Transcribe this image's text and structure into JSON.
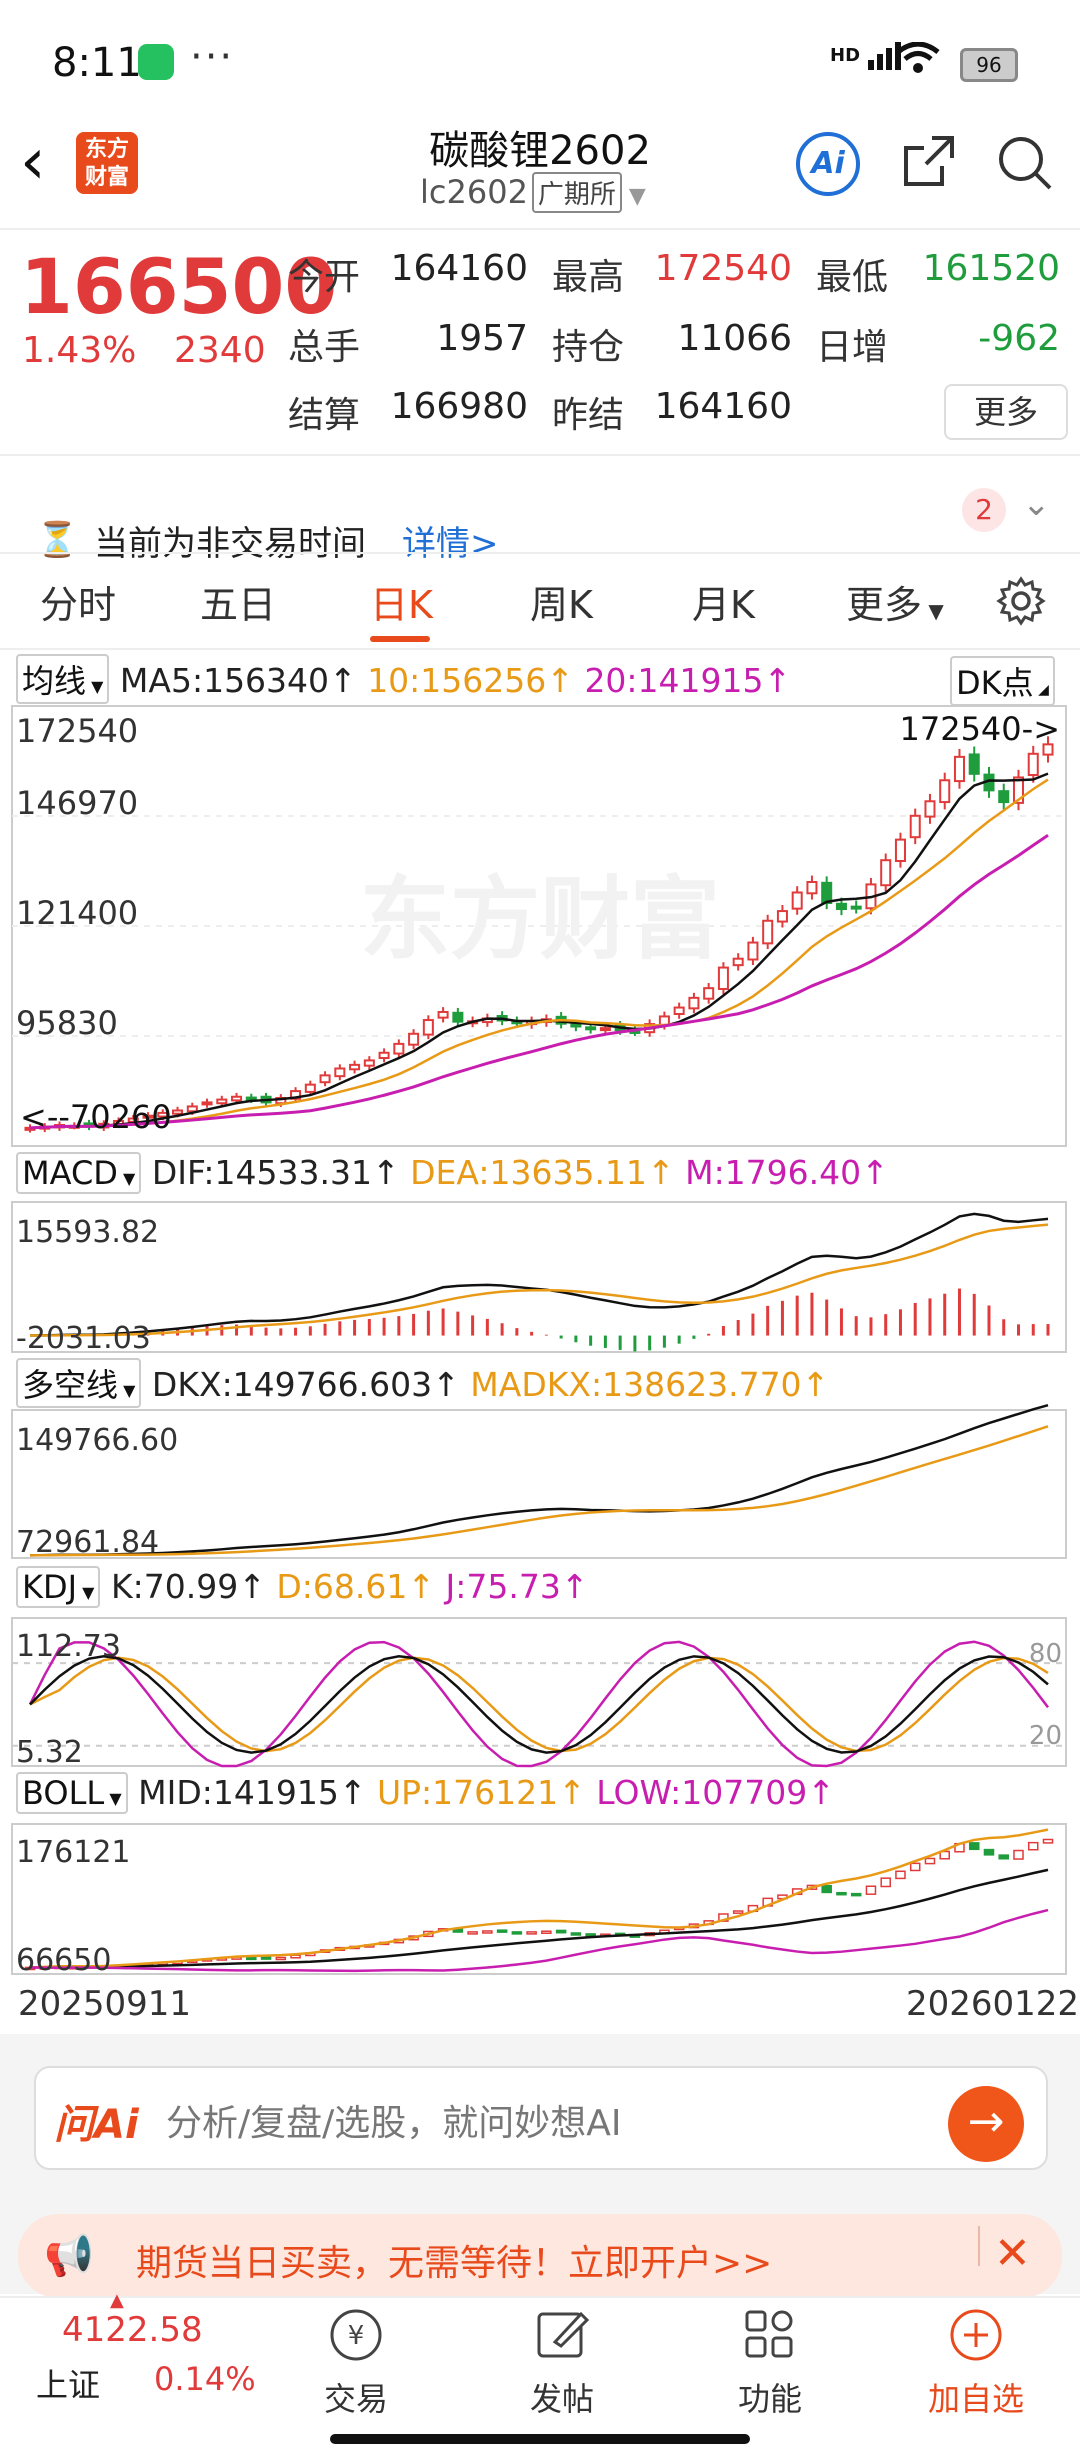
{
  "status_bar": {
    "time": "8:11",
    "dots": "···",
    "network": "HD",
    "battery": "96"
  },
  "header": {
    "title": "碳酸锂2602",
    "code": "lc2602",
    "exchange": "广期所",
    "logo_text": "东方财富",
    "ai_label": "Ai"
  },
  "quote": {
    "price": "166500",
    "change_pct": "1.43%",
    "change_val": "2340",
    "fields": [
      {
        "label": "今开",
        "value": "164160",
        "color": "#222"
      },
      {
        "label": "最高",
        "value": "172540",
        "color": "#e03a3a"
      },
      {
        "label": "最低",
        "value": "161520",
        "color": "#1f9d3d"
      },
      {
        "label": "总手",
        "value": "1957",
        "color": "#222"
      },
      {
        "label": "持仓",
        "value": "11066",
        "color": "#222"
      },
      {
        "label": "日增",
        "value": "-962",
        "color": "#1f9d3d"
      },
      {
        "label": "结算",
        "value": "166980",
        "color": "#222"
      },
      {
        "label": "昨结",
        "value": "164160",
        "color": "#222"
      }
    ],
    "more_label": "更多"
  },
  "notice": {
    "text": "当前为非交易时间",
    "link": "详情>",
    "badge": "2"
  },
  "tabs": [
    "分时",
    "五日",
    "日K",
    "周K",
    "月K",
    "更多"
  ],
  "indicators": {
    "ma": {
      "select": "均线",
      "ma5": "MA5:156340",
      "ma10": "10:156256",
      "ma20": "20:141915",
      "dk": "DK点",
      "y_labels": [
        "172540",
        "146970",
        "121400",
        "95830"
      ],
      "high_note": "172540->",
      "low_note": "<--70260"
    },
    "macd": {
      "select": "MACD",
      "dif": "DIF:14533.31",
      "dea": "DEA:13635.11",
      "m": "M:1796.40",
      "y_top": "15593.82",
      "y_bottom": "-2031.03"
    },
    "dkx": {
      "select": "多空线",
      "dkx": "DKX:149766.603",
      "madkx": "MADKX:138623.770",
      "y_top": "149766.60",
      "y_bottom": "72961.84"
    },
    "kdj": {
      "select": "KDJ",
      "k": "K:70.99",
      "d": "D:68.61",
      "j": "J:75.73",
      "y_top": "112.73",
      "y_bottom": "5.32",
      "r80": "80",
      "r20": "20"
    },
    "boll": {
      "select": "BOLL",
      "mid": "MID:141915",
      "up": "UP:176121",
      "low": "LOW:107709",
      "y_top": "176121",
      "y_bottom": "66650"
    }
  },
  "watermark": "东方财富",
  "dates": {
    "start": "20250911",
    "end": "20260122"
  },
  "ai_search": {
    "logo": "问Ai",
    "placeholder": "分析/复盘/选股，就问妙想AI"
  },
  "ad": {
    "text": "期货当日买卖，无需等待！立即开户>>"
  },
  "index": {
    "value": "4122.58",
    "name": "上证",
    "change": "0.14%"
  },
  "nav": [
    "交易",
    "发帖",
    "功能",
    "加自选"
  ],
  "colors": {
    "up": "#e03a3a",
    "down": "#1f9d3d",
    "ma10": "#e89a17",
    "ma20": "#c81eb0",
    "brand": "#e84a1c"
  },
  "chart_data": {
    "type": "candlestick",
    "x_start": "20250911",
    "x_end": "20260122",
    "price_axis_ticks": [
      172540,
      146970,
      121400,
      95830
    ],
    "closes": [
      71500,
      71800,
      72200,
      72000,
      71800,
      72500,
      73200,
      73800,
      74500,
      75200,
      75800,
      76800,
      77800,
      78500,
      79200,
      78600,
      77800,
      78900,
      80600,
      82200,
      84500,
      86200,
      87100,
      88200,
      90100,
      92300,
      94800,
      98200,
      100200,
      97800,
      97900,
      98600,
      98100,
      97400,
      97900,
      98400,
      97300,
      96600,
      96000,
      96200,
      95700,
      95400,
      97200,
      99100,
      101300,
      103700,
      106100,
      111200,
      113400,
      117400,
      122800,
      125200,
      129800,
      132400,
      127200,
      125700,
      126100,
      131800,
      137800,
      142900,
      148800,
      152400,
      157600,
      163400,
      159200,
      155100,
      152200,
      158300,
      164160,
      166500
    ]
  }
}
